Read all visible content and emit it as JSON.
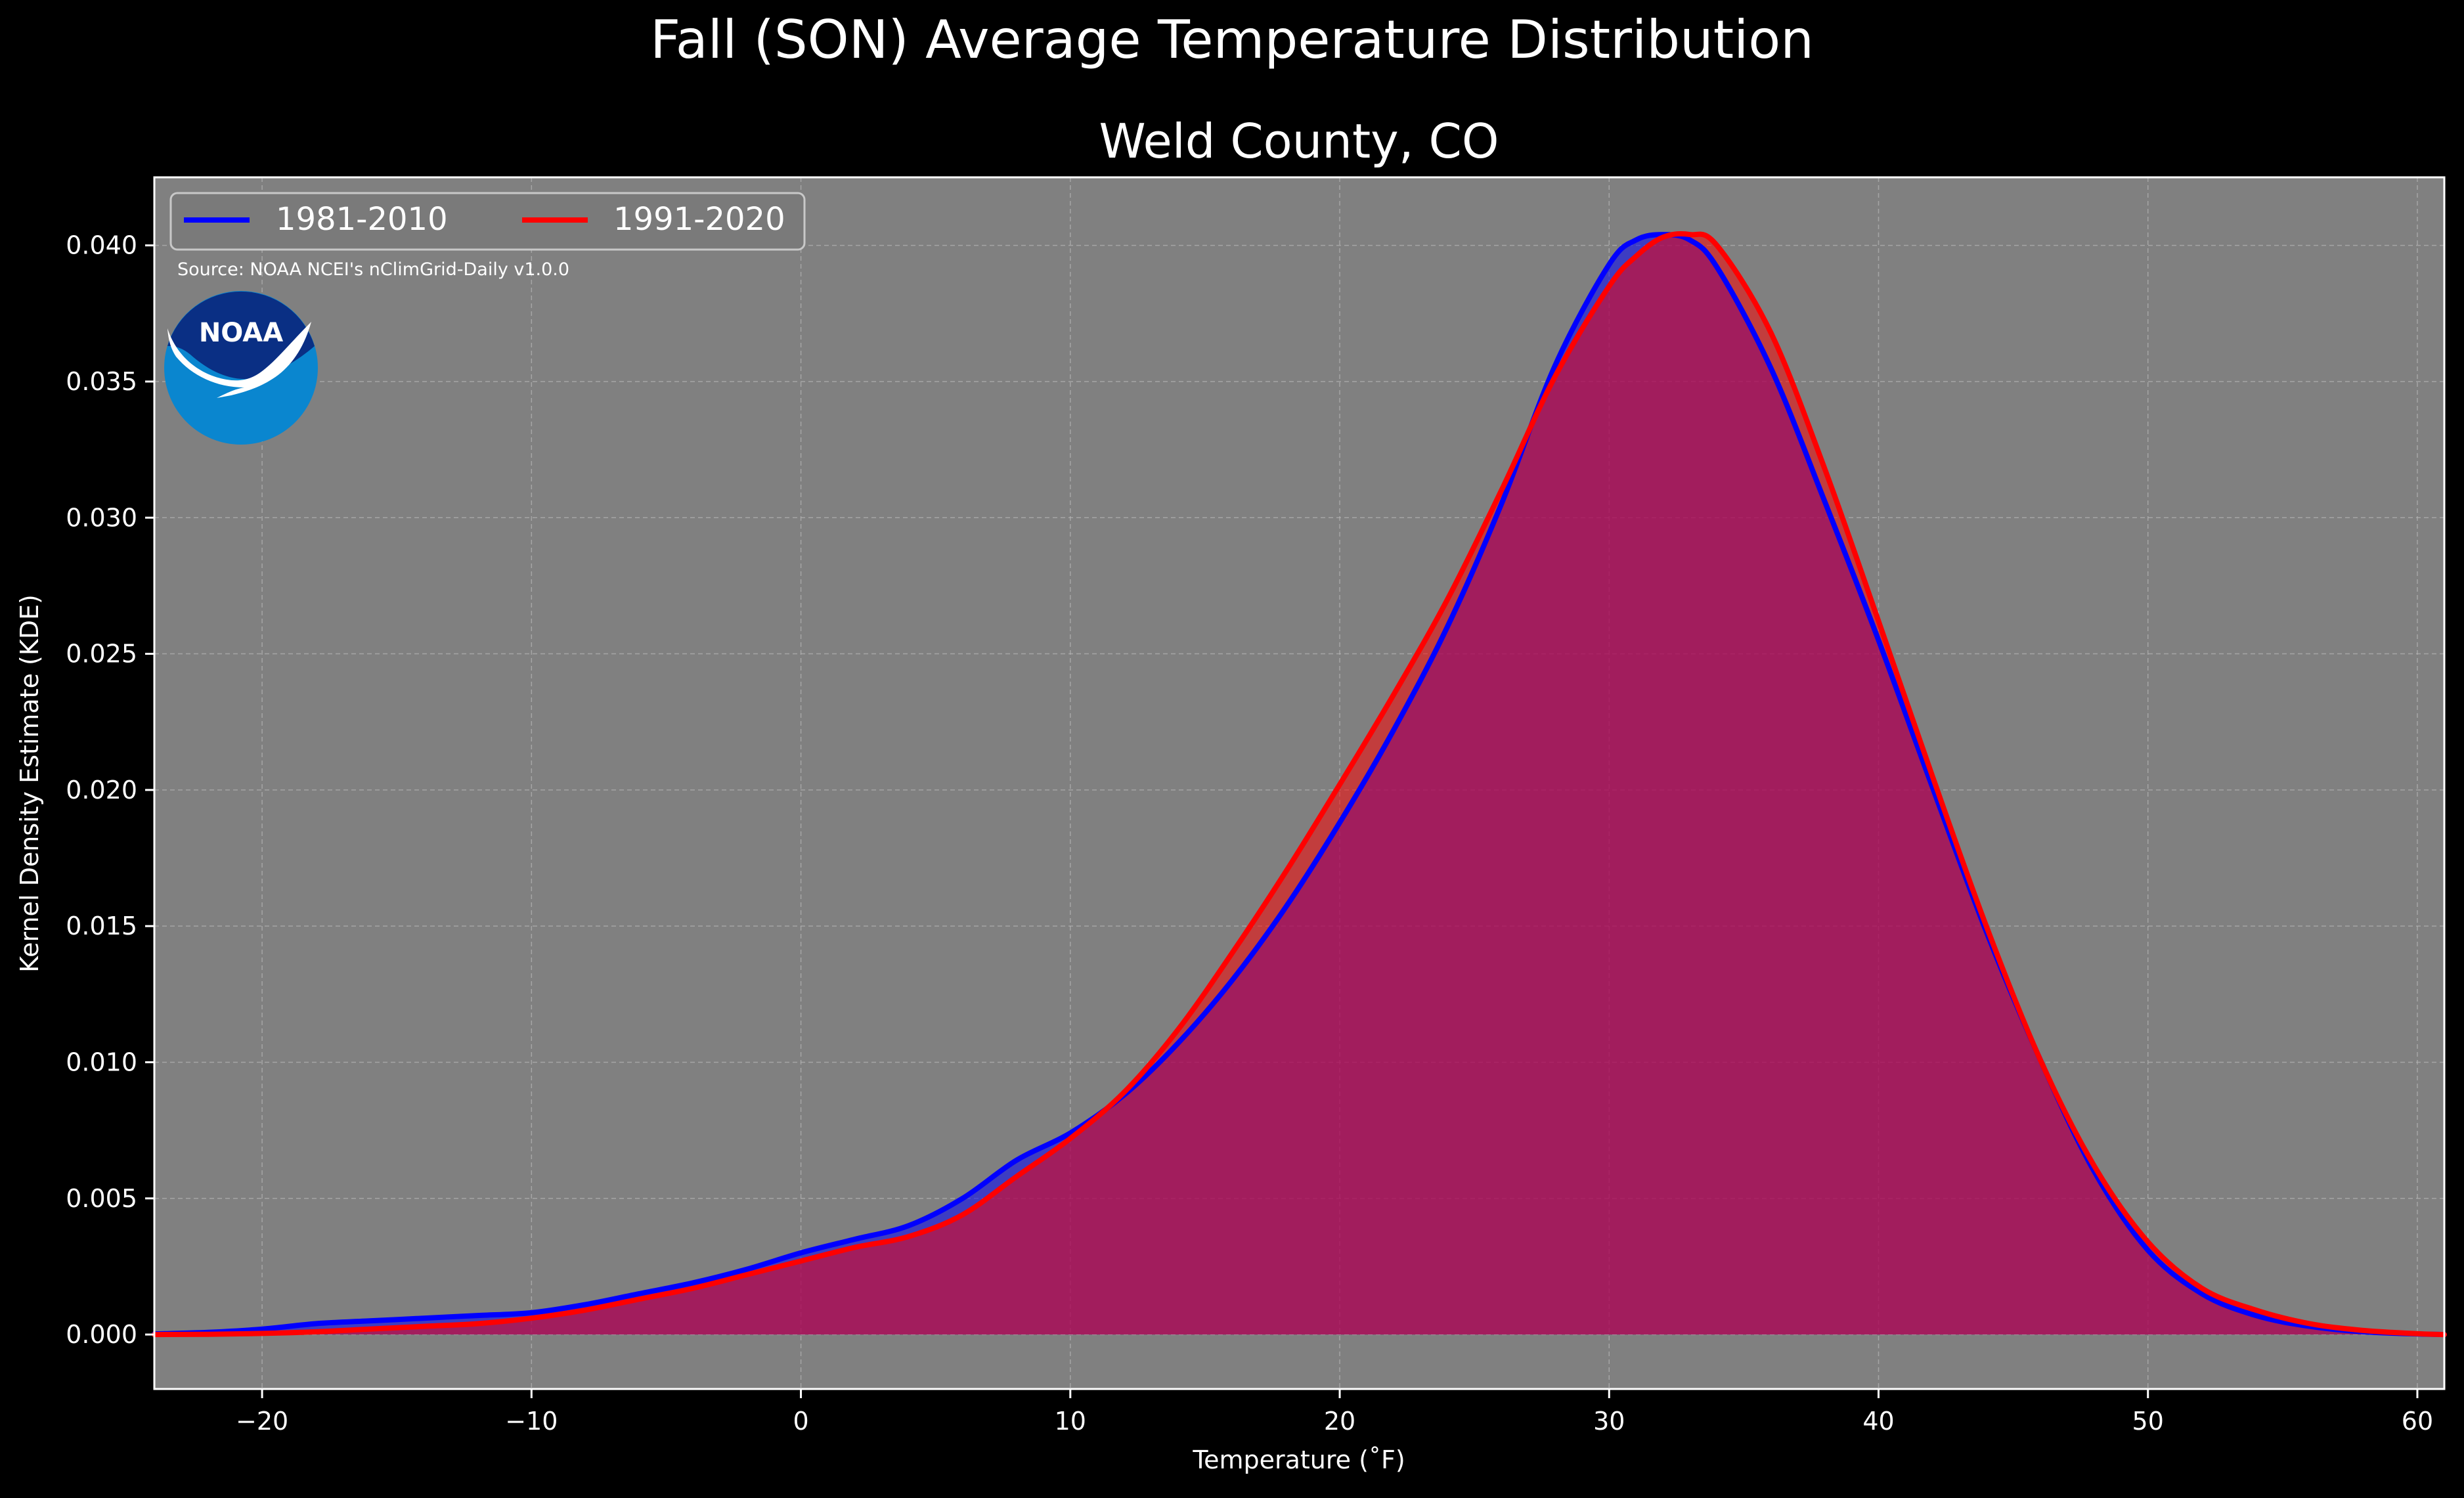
{
  "suptitle": "Fall (SON) Average Temperature Distribution",
  "title": "Weld County, CO",
  "source_note": "Source: NOAA NCEI's nClimGrid-Daily v1.0.0",
  "logo_text": "NOAA",
  "colors": {
    "page_bg": "#000000",
    "plot_bg": "#808080",
    "series_1981_2010": "#0000ff",
    "series_1991_2020": "#ff0000",
    "fill_overlap": "#9b1f5c",
    "text": "#ffffff",
    "grid": "#b0b0b0",
    "logo_outer": "#0a86cf",
    "logo_inner": "#0a2f84"
  },
  "chart_data": {
    "type": "area",
    "title": "Weld County, CO",
    "xlabel": "Temperature ($^\\circ$F)",
    "xlabel_display": "Temperature (˚F)",
    "ylabel": "Kernel Density Estimate (KDE)",
    "xlim": [
      -24,
      61
    ],
    "ylim": [
      -0.002,
      0.0425
    ],
    "xticks": [
      -20,
      -10,
      0,
      10,
      20,
      30,
      40,
      50,
      60
    ],
    "xtick_labels": [
      "−20",
      "−10",
      "0",
      "10",
      "20",
      "30",
      "40",
      "50",
      "60"
    ],
    "yticks": [
      0.0,
      0.005,
      0.01,
      0.015,
      0.02,
      0.025,
      0.03,
      0.035,
      0.04
    ],
    "ytick_labels": [
      "0.000",
      "0.005",
      "0.010",
      "0.015",
      "0.020",
      "0.025",
      "0.030",
      "0.035",
      "0.040"
    ],
    "grid": true,
    "legend_position": "upper left",
    "legend_columns": 2,
    "series": [
      {
        "name": "1981-2010",
        "color": "#0000ff",
        "x": [
          -24,
          -22,
          -20,
          -18,
          -16,
          -14,
          -12,
          -10,
          -8,
          -6,
          -4,
          -2,
          0,
          2,
          4,
          6,
          8,
          10,
          12,
          14,
          16,
          18,
          20,
          22,
          24,
          26,
          28,
          30,
          31,
          32,
          33,
          34,
          36,
          38,
          40,
          42,
          44,
          46,
          48,
          50,
          52,
          54,
          56,
          58,
          60,
          61
        ],
        "y": [
          2e-05,
          8e-05,
          0.0002,
          0.0004,
          0.0005,
          0.0006,
          0.0007,
          0.0008,
          0.0011,
          0.0015,
          0.0019,
          0.0024,
          0.003,
          0.0035,
          0.004,
          0.005,
          0.0064,
          0.0074,
          0.0088,
          0.0107,
          0.013,
          0.0157,
          0.0188,
          0.0222,
          0.026,
          0.0305,
          0.0356,
          0.0393,
          0.0402,
          0.0404,
          0.0402,
          0.0392,
          0.0355,
          0.0306,
          0.0255,
          0.0201,
          0.0148,
          0.0101,
          0.006,
          0.0031,
          0.0015,
          0.0007,
          0.0003,
          0.0001,
          2e-05,
          0.0
        ]
      },
      {
        "name": "1991-2020",
        "color": "#ff0000",
        "x": [
          -24,
          -22,
          -20,
          -18,
          -16,
          -14,
          -12,
          -10,
          -8,
          -6,
          -4,
          -2,
          0,
          2,
          4,
          6,
          8,
          10,
          12,
          14,
          16,
          18,
          20,
          22,
          24,
          26,
          28,
          30,
          31,
          32,
          33,
          34,
          36,
          38,
          40,
          42,
          44,
          46,
          48,
          50,
          52,
          54,
          56,
          58,
          60,
          61
        ],
        "y": [
          0.0,
          1e-05,
          4e-05,
          0.0001,
          0.0002,
          0.0003,
          0.0004,
          0.0006,
          0.0009,
          0.0013,
          0.0017,
          0.0022,
          0.0027,
          0.0032,
          0.0036,
          0.0044,
          0.0058,
          0.0072,
          0.0089,
          0.0112,
          0.014,
          0.017,
          0.0202,
          0.0235,
          0.027,
          0.031,
          0.0352,
          0.0385,
          0.0396,
          0.0403,
          0.0404,
          0.04,
          0.0368,
          0.0318,
          0.0262,
          0.0205,
          0.015,
          0.0101,
          0.0062,
          0.0034,
          0.0017,
          0.0009,
          0.0004,
          0.00015,
          3e-05,
          0.0
        ]
      }
    ]
  }
}
